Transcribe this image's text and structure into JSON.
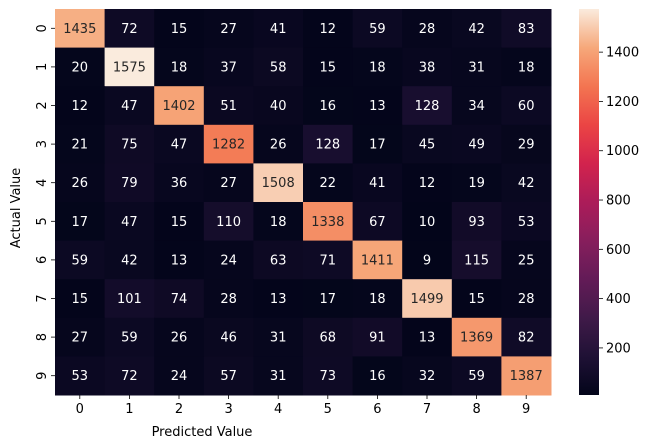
{
  "chart_data": {
    "type": "heatmap",
    "xlabel": "Predicted Value",
    "ylabel": "Actual Value",
    "x_categories": [
      "0",
      "1",
      "2",
      "3",
      "4",
      "5",
      "6",
      "7",
      "8",
      "9"
    ],
    "y_categories": [
      "0",
      "1",
      "2",
      "3",
      "4",
      "5",
      "6",
      "7",
      "8",
      "9"
    ],
    "values": [
      [
        1435,
        72,
        15,
        27,
        41,
        12,
        59,
        28,
        42,
        83
      ],
      [
        20,
        1575,
        18,
        37,
        58,
        15,
        18,
        38,
        31,
        18
      ],
      [
        12,
        47,
        1402,
        51,
        40,
        16,
        13,
        128,
        34,
        60
      ],
      [
        21,
        75,
        47,
        1282,
        26,
        128,
        17,
        45,
        49,
        29
      ],
      [
        26,
        79,
        36,
        27,
        1508,
        22,
        41,
        12,
        19,
        42
      ],
      [
        17,
        47,
        15,
        110,
        18,
        1338,
        67,
        10,
        93,
        53
      ],
      [
        59,
        42,
        13,
        24,
        63,
        71,
        1411,
        9,
        115,
        25
      ],
      [
        15,
        101,
        74,
        28,
        13,
        17,
        18,
        1499,
        15,
        28
      ],
      [
        27,
        59,
        26,
        46,
        31,
        68,
        91,
        13,
        1369,
        82
      ],
      [
        53,
        72,
        24,
        57,
        31,
        73,
        16,
        32,
        59,
        1387
      ]
    ],
    "colorbar": {
      "min": 9,
      "max": 1575,
      "ticks": [
        200,
        400,
        600,
        800,
        1000,
        1200,
        1400
      ],
      "colormap": "rocket"
    },
    "annotations": true
  }
}
